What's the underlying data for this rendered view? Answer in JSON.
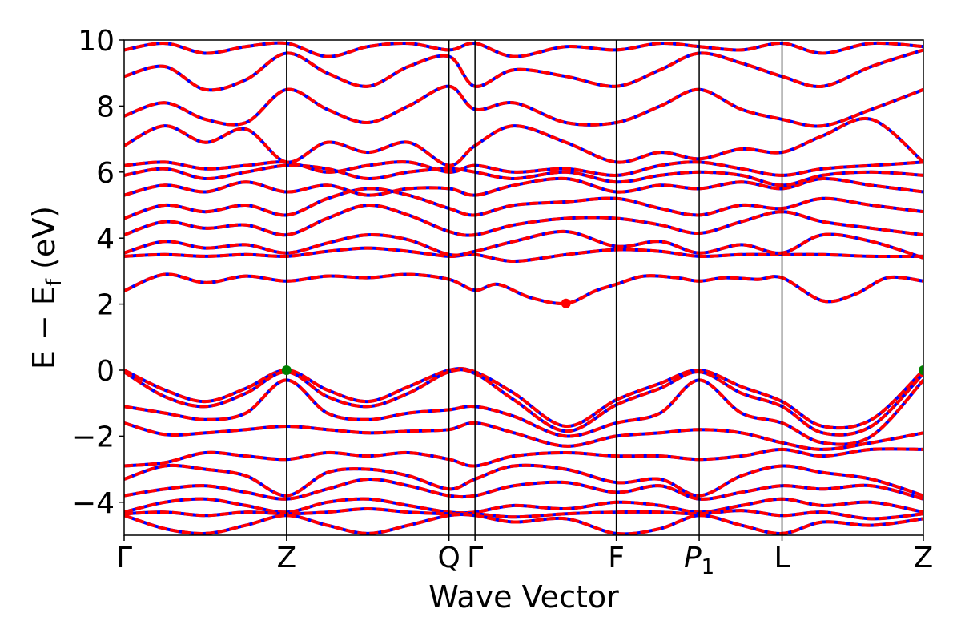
{
  "chart_data": {
    "type": "line",
    "xlabel": "Wave Vector",
    "ylabel": "E − E_f (eV)",
    "ylabel_parts": {
      "main": "E − E",
      "sub": "f",
      "unit": " (eV)"
    },
    "ylim": [
      -5,
      10
    ],
    "yticks": [
      {
        "value": 10,
        "label": "10"
      },
      {
        "value": 8,
        "label": "8"
      },
      {
        "value": 6,
        "label": "6"
      },
      {
        "value": 4,
        "label": "4"
      },
      {
        "value": 2,
        "label": "2"
      },
      {
        "value": 0,
        "label": "0"
      },
      {
        "value": -2,
        "label": "−2"
      },
      {
        "value": -4,
        "label": "−4"
      }
    ],
    "kpoints": [
      {
        "label": "Γ",
        "sub": "",
        "x": 0.0
      },
      {
        "label": "Z",
        "sub": "",
        "x": 1.0
      },
      {
        "label": "Q",
        "sub": "",
        "x": 2.0
      },
      {
        "label": "Γ",
        "sub": "",
        "x": 2.16
      },
      {
        "label": "F",
        "sub": "",
        "x": 3.03
      },
      {
        "label": "P",
        "sub": "1",
        "x": 3.54
      },
      {
        "label": "L",
        "sub": "",
        "x": 4.05
      },
      {
        "label": "Z",
        "sub": "",
        "x": 4.92
      }
    ],
    "xlim": [
      0.0,
      4.92
    ],
    "band_colors": {
      "line": "#ff0000",
      "dash": "#0000ff"
    },
    "marker_colors": {
      "cbm": "#ff0000",
      "vbm": "#008000"
    },
    "markers": [
      {
        "kind": "cbm",
        "x": 2.72,
        "y": 2.02
      },
      {
        "kind": "vbm",
        "x": 1.0,
        "y": 0.0
      },
      {
        "kind": "vbm",
        "x": 4.92,
        "y": 0.0
      }
    ],
    "conduction_bands": [
      {
        "x": [
          0.0,
          0.25,
          0.5,
          0.75,
          1.0,
          1.25,
          1.5,
          1.75,
          2.0,
          2.16,
          2.3,
          2.5,
          2.72,
          2.9,
          3.03,
          3.2,
          3.4,
          3.54,
          3.7,
          3.9,
          4.05,
          4.3,
          4.5,
          4.7,
          4.92
        ],
        "y": [
          2.4,
          2.9,
          2.65,
          2.85,
          2.7,
          2.85,
          2.8,
          2.9,
          2.75,
          2.42,
          2.6,
          2.2,
          2.02,
          2.4,
          2.6,
          2.85,
          2.8,
          2.7,
          2.8,
          2.75,
          2.8,
          2.1,
          2.3,
          2.8,
          2.7
        ]
      },
      {
        "x": [
          0.0,
          0.25,
          0.5,
          0.75,
          1.0,
          1.25,
          1.5,
          1.75,
          2.0,
          2.16,
          2.4,
          2.72,
          3.03,
          3.3,
          3.54,
          3.8,
          4.05,
          4.3,
          4.6,
          4.92
        ],
        "y": [
          3.45,
          3.5,
          3.45,
          3.5,
          3.45,
          3.6,
          3.7,
          3.6,
          3.45,
          3.5,
          3.3,
          3.5,
          3.65,
          3.6,
          3.45,
          3.5,
          3.5,
          3.5,
          3.45,
          3.45
        ]
      },
      {
        "x": [
          0.0,
          0.25,
          0.5,
          0.75,
          1.0,
          1.25,
          1.5,
          1.75,
          2.0,
          2.16,
          2.4,
          2.72,
          3.03,
          3.3,
          3.54,
          3.8,
          4.05,
          4.3,
          4.6,
          4.92
        ],
        "y": [
          3.55,
          3.9,
          3.7,
          3.8,
          3.55,
          3.85,
          4.1,
          3.95,
          3.5,
          3.6,
          3.9,
          4.2,
          3.75,
          3.9,
          3.55,
          3.8,
          3.55,
          4.1,
          3.9,
          3.4
        ]
      },
      {
        "x": [
          0.0,
          0.25,
          0.5,
          0.75,
          1.0,
          1.25,
          1.5,
          1.75,
          2.0,
          2.16,
          2.4,
          2.72,
          3.03,
          3.3,
          3.54,
          3.8,
          4.05,
          4.3,
          4.6,
          4.92
        ],
        "y": [
          4.1,
          4.5,
          4.3,
          4.4,
          4.1,
          4.6,
          5.0,
          4.7,
          4.2,
          4.1,
          4.4,
          4.6,
          4.6,
          4.4,
          4.15,
          4.5,
          4.8,
          4.5,
          4.3,
          4.1
        ]
      },
      {
        "x": [
          0.0,
          0.25,
          0.5,
          0.75,
          1.0,
          1.25,
          1.5,
          1.75,
          2.0,
          2.16,
          2.4,
          2.72,
          3.03,
          3.3,
          3.54,
          3.8,
          4.05,
          4.3,
          4.6,
          4.92
        ],
        "y": [
          4.6,
          5.0,
          4.8,
          5.0,
          4.7,
          5.2,
          5.5,
          5.3,
          4.9,
          4.7,
          5.0,
          5.1,
          5.2,
          4.9,
          4.7,
          5.0,
          4.9,
          5.2,
          5.0,
          4.8
        ]
      },
      {
        "x": [
          0.0,
          0.25,
          0.5,
          0.75,
          1.0,
          1.25,
          1.5,
          1.75,
          2.0,
          2.16,
          2.4,
          2.72,
          3.03,
          3.3,
          3.54,
          3.8,
          4.05,
          4.3,
          4.6,
          4.92
        ],
        "y": [
          5.3,
          5.6,
          5.4,
          5.7,
          5.4,
          5.6,
          5.3,
          5.5,
          5.5,
          5.3,
          5.6,
          5.8,
          5.4,
          5.6,
          5.5,
          5.7,
          5.5,
          5.8,
          5.6,
          5.4
        ]
      },
      {
        "x": [
          0.0,
          0.25,
          0.5,
          0.75,
          1.0,
          1.25,
          1.5,
          1.75,
          2.0,
          2.16,
          2.4,
          2.72,
          3.03,
          3.3,
          3.54,
          3.8,
          4.05,
          4.3,
          4.6,
          4.92
        ],
        "y": [
          5.9,
          6.1,
          5.8,
          6.0,
          6.2,
          6.1,
          5.8,
          6.0,
          6.1,
          6.0,
          5.8,
          6.0,
          5.7,
          5.9,
          6.0,
          5.9,
          5.6,
          5.9,
          6.0,
          5.9
        ]
      },
      {
        "x": [
          0.0,
          0.25,
          0.5,
          0.75,
          1.0,
          1.25,
          1.5,
          1.75,
          2.0,
          2.16,
          2.4,
          2.72,
          3.03,
          3.3,
          3.54,
          3.8,
          4.05,
          4.3,
          4.6,
          4.92
        ],
        "y": [
          6.2,
          6.3,
          6.1,
          6.2,
          6.3,
          6.0,
          6.2,
          6.3,
          6.0,
          6.2,
          6.0,
          6.1,
          5.9,
          6.2,
          6.3,
          6.1,
          5.9,
          6.1,
          6.2,
          6.3
        ]
      },
      {
        "x": [
          0.0,
          0.25,
          0.5,
          0.75,
          1.0,
          1.25,
          1.5,
          1.75,
          2.0,
          2.16,
          2.4,
          2.72,
          3.03,
          3.3,
          3.54,
          3.8,
          4.05,
          4.3,
          4.6,
          4.92
        ],
        "y": [
          6.8,
          7.4,
          6.9,
          7.3,
          6.3,
          6.9,
          6.6,
          6.9,
          6.2,
          6.8,
          7.4,
          6.9,
          6.3,
          6.6,
          6.4,
          6.7,
          6.6,
          7.1,
          7.6,
          6.3
        ]
      },
      {
        "x": [
          0.0,
          0.25,
          0.5,
          0.75,
          1.0,
          1.25,
          1.5,
          1.75,
          2.0,
          2.16,
          2.4,
          2.72,
          3.03,
          3.3,
          3.54,
          3.8,
          4.05,
          4.3,
          4.6,
          4.92
        ],
        "y": [
          7.7,
          8.1,
          7.6,
          7.5,
          8.5,
          7.9,
          7.5,
          8.0,
          8.6,
          7.9,
          8.1,
          7.5,
          7.5,
          8.0,
          8.5,
          7.9,
          7.6,
          7.4,
          7.9,
          8.5
        ]
      },
      {
        "x": [
          0.0,
          0.25,
          0.5,
          0.75,
          1.0,
          1.25,
          1.5,
          1.75,
          2.0,
          2.16,
          2.4,
          2.72,
          3.03,
          3.3,
          3.54,
          3.8,
          4.05,
          4.3,
          4.6,
          4.92
        ],
        "y": [
          8.9,
          9.2,
          8.5,
          8.8,
          9.6,
          9.0,
          8.6,
          9.2,
          9.5,
          8.6,
          9.1,
          8.9,
          8.6,
          9.1,
          9.6,
          9.3,
          8.9,
          8.6,
          9.2,
          9.7
        ]
      },
      {
        "x": [
          0.0,
          0.25,
          0.5,
          0.75,
          1.0,
          1.25,
          1.5,
          1.75,
          2.0,
          2.16,
          2.4,
          2.72,
          3.03,
          3.3,
          3.54,
          3.8,
          4.05,
          4.3,
          4.6,
          4.92
        ],
        "y": [
          9.7,
          9.9,
          9.6,
          9.8,
          9.9,
          9.5,
          9.8,
          9.9,
          9.7,
          9.9,
          9.5,
          9.8,
          9.7,
          9.9,
          9.8,
          9.7,
          9.9,
          9.6,
          9.9,
          9.8
        ]
      }
    ],
    "valence_bands": [
      {
        "x": [
          0.0,
          0.25,
          0.5,
          0.75,
          1.0,
          1.25,
          1.5,
          1.75,
          2.0,
          2.16,
          2.4,
          2.72,
          3.03,
          3.3,
          3.54,
          3.8,
          4.05,
          4.3,
          4.6,
          4.92
        ],
        "y": [
          0.0,
          -0.6,
          -0.95,
          -0.55,
          0.0,
          -0.6,
          -0.95,
          -0.5,
          0.0,
          -0.05,
          -0.7,
          -1.7,
          -0.9,
          -0.4,
          0.0,
          -0.5,
          -0.95,
          -1.7,
          -1.5,
          0.0
        ]
      },
      {
        "x": [
          0.0,
          0.25,
          0.5,
          0.75,
          1.0,
          1.25,
          1.5,
          1.75,
          2.0,
          2.16,
          2.4,
          2.72,
          3.03,
          3.3,
          3.54,
          3.8,
          4.05,
          4.3,
          4.6,
          4.92
        ],
        "y": [
          -0.05,
          -0.8,
          -1.1,
          -0.7,
          -0.05,
          -0.8,
          -1.1,
          -0.7,
          -0.05,
          -0.1,
          -0.9,
          -1.85,
          -1.05,
          -0.55,
          -0.05,
          -0.7,
          -1.1,
          -1.9,
          -1.7,
          -0.1
        ]
      },
      {
        "x": [
          0.0,
          0.25,
          0.5,
          0.75,
          1.0,
          1.25,
          1.5,
          1.75,
          2.0,
          2.16,
          2.4,
          2.72,
          3.03,
          3.3,
          3.54,
          3.8,
          4.05,
          4.3,
          4.6,
          4.92
        ],
        "y": [
          -1.1,
          -1.3,
          -1.5,
          -1.3,
          -0.3,
          -1.3,
          -1.5,
          -1.3,
          -1.2,
          -1.1,
          -1.4,
          -2.0,
          -1.6,
          -1.3,
          -0.3,
          -1.3,
          -1.6,
          -2.2,
          -2.0,
          -0.3
        ]
      },
      {
        "x": [
          0.0,
          0.25,
          0.5,
          0.75,
          1.0,
          1.25,
          1.5,
          1.75,
          2.0,
          2.16,
          2.4,
          2.72,
          3.03,
          3.3,
          3.54,
          3.8,
          4.05,
          4.3,
          4.6,
          4.92
        ],
        "y": [
          -1.6,
          -1.95,
          -1.9,
          -1.8,
          -1.7,
          -1.8,
          -1.9,
          -1.85,
          -1.8,
          -1.6,
          -1.9,
          -2.3,
          -2.0,
          -1.9,
          -1.8,
          -1.9,
          -2.2,
          -2.4,
          -2.2,
          -1.9
        ]
      },
      {
        "x": [
          0.0,
          0.25,
          0.5,
          0.75,
          1.0,
          1.25,
          1.5,
          1.75,
          2.0,
          2.16,
          2.4,
          2.72,
          3.03,
          3.3,
          3.54,
          3.8,
          4.05,
          4.3,
          4.6,
          4.92
        ],
        "y": [
          -2.9,
          -2.8,
          -2.5,
          -2.6,
          -2.7,
          -2.5,
          -2.6,
          -2.5,
          -2.7,
          -2.9,
          -2.6,
          -2.5,
          -2.6,
          -2.6,
          -2.7,
          -2.6,
          -2.4,
          -2.6,
          -2.4,
          -2.4
        ]
      },
      {
        "x": [
          0.0,
          0.25,
          0.5,
          0.75,
          1.0,
          1.25,
          1.5,
          1.75,
          2.0,
          2.16,
          2.4,
          2.72,
          3.03,
          3.3,
          3.54,
          3.8,
          4.05,
          4.3,
          4.6,
          4.92
        ],
        "y": [
          -3.3,
          -2.9,
          -3.0,
          -3.2,
          -3.8,
          -3.1,
          -3.0,
          -3.2,
          -3.6,
          -3.3,
          -2.9,
          -3.0,
          -3.4,
          -3.3,
          -3.8,
          -3.2,
          -2.9,
          -3.1,
          -3.3,
          -3.8
        ]
      },
      {
        "x": [
          0.0,
          0.25,
          0.5,
          0.75,
          1.0,
          1.25,
          1.5,
          1.75,
          2.0,
          2.16,
          2.4,
          2.72,
          3.03,
          3.3,
          3.54,
          3.8,
          4.05,
          4.3,
          4.6,
          4.92
        ],
        "y": [
          -3.8,
          -3.6,
          -3.5,
          -3.7,
          -3.9,
          -3.6,
          -3.3,
          -3.5,
          -3.8,
          -3.8,
          -3.5,
          -3.4,
          -3.7,
          -3.5,
          -3.9,
          -3.7,
          -3.5,
          -3.6,
          -3.5,
          -3.9
        ]
      },
      {
        "x": [
          0.0,
          0.25,
          0.5,
          0.75,
          1.0,
          1.25,
          1.5,
          1.75,
          2.0,
          2.16,
          2.4,
          2.72,
          3.03,
          3.3,
          3.54,
          3.8,
          4.05,
          4.3,
          4.6,
          4.92
        ],
        "y": [
          -4.3,
          -4.0,
          -3.9,
          -4.1,
          -4.3,
          -4.0,
          -3.9,
          -4.1,
          -4.3,
          -4.3,
          -4.1,
          -4.2,
          -4.0,
          -4.1,
          -4.3,
          -4.1,
          -3.9,
          -4.1,
          -4.0,
          -4.3
        ]
      },
      {
        "x": [
          0.0,
          0.25,
          0.5,
          0.75,
          1.0,
          1.25,
          1.5,
          1.75,
          2.0,
          2.16,
          2.4,
          2.72,
          3.03,
          3.3,
          3.54,
          3.8,
          4.05,
          4.3,
          4.6,
          4.92
        ],
        "y": [
          -4.35,
          -4.3,
          -4.4,
          -4.3,
          -4.35,
          -4.3,
          -4.2,
          -4.3,
          -4.35,
          -4.35,
          -4.45,
          -4.35,
          -4.3,
          -4.3,
          -4.35,
          -4.25,
          -4.4,
          -4.3,
          -4.5,
          -4.35
        ]
      },
      {
        "x": [
          0.0,
          0.25,
          0.5,
          0.75,
          1.0,
          1.25,
          1.5,
          1.75,
          2.0,
          2.16,
          2.4,
          2.72,
          3.03,
          3.3,
          3.54,
          3.8,
          4.05,
          4.3,
          4.6,
          4.92
        ],
        "y": [
          -4.4,
          -4.8,
          -4.95,
          -4.7,
          -4.4,
          -4.7,
          -4.95,
          -4.7,
          -4.4,
          -4.4,
          -4.6,
          -4.5,
          -4.95,
          -4.8,
          -4.4,
          -4.7,
          -4.95,
          -4.6,
          -4.7,
          -4.5
        ]
      }
    ]
  }
}
